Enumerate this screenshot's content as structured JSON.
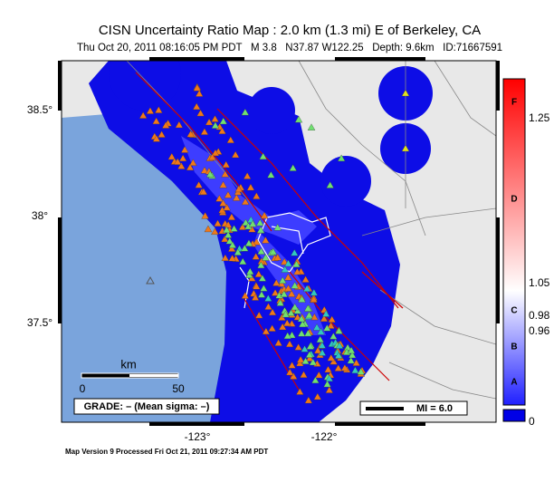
{
  "header": {
    "title": "CISN Uncertainty Ratio Map : 2.0 km (1.3 mi) E of Berkeley, CA",
    "subtitle": "Thu Oct 20, 2011 08:16:05 PM PDT   M 3.8   N37.87 W122.25   Depth: 9.6km   ID:71667591"
  },
  "map": {
    "lat_labels": [
      "38.5°",
      "38°",
      "37.5°"
    ],
    "lon_labels": [
      "-123°",
      "-122°"
    ],
    "scale": {
      "unit": "km",
      "start": "0",
      "end": "50"
    },
    "grade": "GRADE: – (Mean sigma: –)",
    "mi_label": "MI = 6.0"
  },
  "colorbar": {
    "values": [
      "1.25",
      "1.05",
      "0.98",
      "0.96",
      "0"
    ],
    "grades": [
      "F",
      "D",
      "C",
      "B",
      "A"
    ]
  },
  "footer": "Map Version 9 Processed Fri Oct 21, 2011 09:27:34 AM PDT"
}
